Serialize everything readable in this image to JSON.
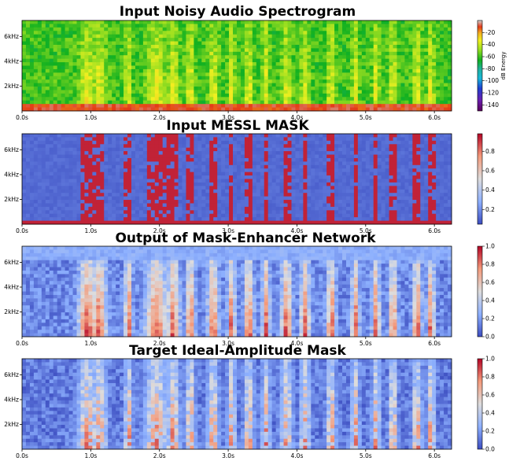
{
  "chart_data": [
    {
      "type": "heatmap",
      "title": "Input Noisy Audio Spectrogram",
      "xlabel": "",
      "ylabel": "",
      "x_ticks": [
        "0.0s",
        "1.0s",
        "2.0s",
        "3.0s",
        "4.0s",
        "5.0s",
        "6.0s"
      ],
      "x_tick_values": [
        0,
        1,
        2,
        3,
        4,
        5,
        6
      ],
      "xlim": [
        0,
        6.25
      ],
      "y_ticks": [
        "2kHz",
        "4kHz",
        "6kHz"
      ],
      "y_tick_values": [
        2,
        4,
        6
      ],
      "ylim": [
        0,
        7.3
      ],
      "colormap": "spectral",
      "colorbar": {
        "label": "dB Energy",
        "ticks": [
          -20,
          -40,
          -60,
          -80,
          -100,
          -120,
          -140
        ],
        "range": [
          -150,
          0
        ]
      }
    },
    {
      "type": "heatmap",
      "title": "Input MESSL MASK",
      "xlabel": "",
      "ylabel": "",
      "x_ticks": [
        "0.0s",
        "1.0s",
        "2.0s",
        "3.0s",
        "4.0s",
        "5.0s",
        "6.0s"
      ],
      "x_tick_values": [
        0,
        1,
        2,
        3,
        4,
        5,
        6
      ],
      "xlim": [
        0,
        6.25
      ],
      "y_ticks": [
        "2kHz",
        "4kHz",
        "6kHz"
      ],
      "y_tick_values": [
        2,
        4,
        6
      ],
      "ylim": [
        0,
        7.3
      ],
      "colormap": "coolwarm",
      "colorbar": {
        "label": "",
        "ticks": [
          0.2,
          0.4,
          0.6,
          0.8
        ],
        "range": [
          0.05,
          0.98
        ]
      }
    },
    {
      "type": "heatmap",
      "title": "Output of Mask-Enhancer Network",
      "xlabel": "",
      "ylabel": "",
      "x_ticks": [
        "0.0s",
        "1.0s",
        "2.0s",
        "3.0s",
        "4.0s",
        "5.0s",
        "6.0s"
      ],
      "x_tick_values": [
        0,
        1,
        2,
        3,
        4,
        5,
        6
      ],
      "xlim": [
        0,
        6.25
      ],
      "y_ticks": [
        "2kHz",
        "4kHz",
        "6kHz"
      ],
      "y_tick_values": [
        2,
        4,
        6
      ],
      "ylim": [
        0,
        7.3
      ],
      "colormap": "coolwarm",
      "colorbar": {
        "label": "",
        "ticks": [
          "0.0",
          "0.2",
          "0.4",
          "0.6",
          "0.8",
          "1.0"
        ],
        "range": [
          0,
          1
        ]
      }
    },
    {
      "type": "heatmap",
      "title": "Target Ideal-Amplitude Mask",
      "xlabel": "",
      "ylabel": "",
      "x_ticks": [
        "0.0s",
        "1.0s",
        "2.0s",
        "3.0s",
        "4.0s",
        "5.0s",
        "6.0s"
      ],
      "x_tick_values": [
        0,
        1,
        2,
        3,
        4,
        5,
        6
      ],
      "xlim": [
        0,
        6.25
      ],
      "y_ticks": [
        "2kHz",
        "4kHz",
        "6kHz"
      ],
      "y_tick_values": [
        2,
        4,
        6
      ],
      "ylim": [
        0,
        7.3
      ],
      "colormap": "coolwarm",
      "colorbar": {
        "label": "",
        "ticks": [
          "0.0",
          "0.2",
          "0.4",
          "0.6",
          "0.8",
          "1.0"
        ],
        "range": [
          0,
          1
        ]
      }
    }
  ]
}
